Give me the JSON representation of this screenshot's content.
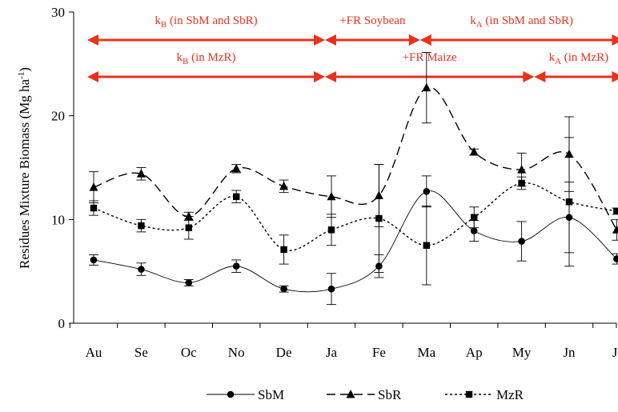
{
  "chart_data": {
    "type": "line",
    "ylabel": "Residues Mixture Biomass (Mg ha",
    "ylabel_sup": "-1",
    "ylabel_close": ")",
    "ylim": [
      0,
      30
    ],
    "yticks": [
      0,
      10,
      20,
      30
    ],
    "categories": [
      "Au",
      "Se",
      "Oc",
      "No",
      "De",
      "Ja",
      "Fe",
      "Ma",
      "Ap",
      "My",
      "Jn",
      "Jl"
    ],
    "series": [
      {
        "name": "SbM",
        "marker": "circle",
        "line_style": "solid",
        "values": [
          6.1,
          5.2,
          3.9,
          5.5,
          3.3,
          3.3,
          5.5,
          12.7,
          8.9,
          7.9,
          10.2,
          6.2
        ],
        "errors": [
          0.5,
          0.6,
          0.3,
          0.6,
          0.3,
          1.5,
          1.1,
          1.5,
          1.0,
          1.9,
          3.4,
          0.5
        ]
      },
      {
        "name": "SbR",
        "marker": "triangle",
        "line_style": "dashed",
        "values": [
          13.1,
          14.4,
          10.3,
          14.9,
          13.2,
          12.2,
          12.3,
          22.7,
          16.5,
          14.8,
          16.3,
          9.0
        ],
        "errors": [
          1.5,
          0.6,
          0.4,
          0.4,
          0.6,
          2.0,
          3.0,
          3.4,
          0.3,
          1.6,
          3.6,
          1.0
        ]
      },
      {
        "name": "MzR",
        "marker": "square",
        "line_style": "dotted",
        "values": [
          11.1,
          9.4,
          9.2,
          12.2,
          7.1,
          9.0,
          10.1,
          7.5,
          10.2,
          13.5,
          11.7,
          10.8
        ],
        "errors": [
          0.7,
          0.6,
          1.1,
          0.6,
          1.4,
          1.5,
          5.2,
          3.8,
          1.0,
          0.6,
          6.2,
          0.3
        ]
      }
    ],
    "legend": [
      "SbM",
      "SbR",
      "MzR"
    ],
    "legend_position": "bottom-center",
    "grid": false,
    "annotations": [
      {
        "sub": "B",
        "label_rest": " (in SbM and SbR)",
        "row": 1,
        "from": 0,
        "to": 5
      },
      {
        "sub": "",
        "label": "+FR Soybean",
        "row": 1,
        "from": 5,
        "to": 7
      },
      {
        "sub": "A",
        "label_rest": " (in SbM and SbR)",
        "row": 1,
        "from": 7,
        "to": 11
      },
      {
        "sub": "B",
        "label_rest": " (in MzR)",
        "row": 2,
        "from": 0,
        "to": 5
      },
      {
        "sub": "",
        "label": "+FR Maize",
        "row": 2,
        "from": 5,
        "to": 9.4
      },
      {
        "sub": "A",
        "label_rest": " (in MzR)",
        "row": 2,
        "from": 9.4,
        "to": 11
      }
    ],
    "annotation_prefix": "k",
    "colors": {
      "annotation": "#e8321e",
      "series": "#000000"
    }
  }
}
